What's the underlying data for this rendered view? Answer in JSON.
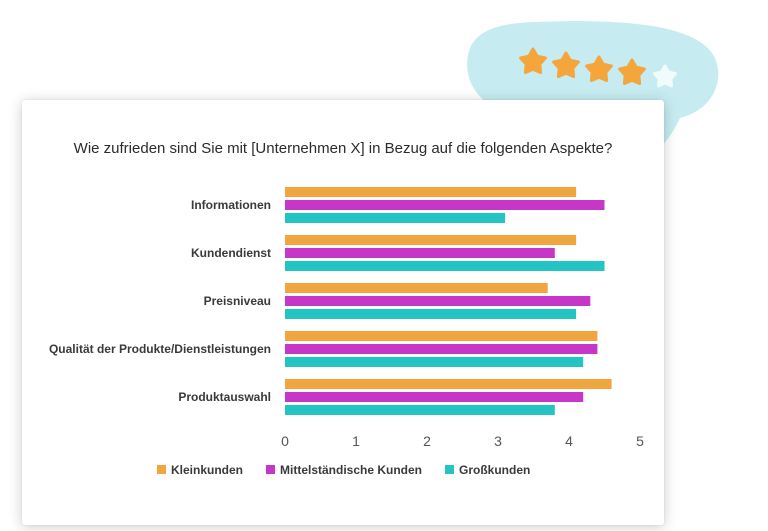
{
  "colors": {
    "kleinkunden": "#F0A53E",
    "mittelstaendische": "#C737C7",
    "grosskunden": "#24C4C4",
    "bubble": "#C6ECF1",
    "star": "#F4A53C",
    "star_empty": "#F2FBFC"
  },
  "rating": {
    "stars_filled": 4,
    "stars_total": 5
  },
  "chart_data": {
    "type": "bar",
    "orientation": "horizontal",
    "title": "Wie zufrieden sind Sie mit [Unternehmen X] in Bezug auf die folgenden Aspekte?",
    "categories": [
      "Informationen",
      "Kundendienst",
      "Preisniveau",
      "Qualität der Produkte/Dienstleistungen",
      "Produktauswahl"
    ],
    "series": [
      {
        "name": "Kleinkunden",
        "values": [
          4.1,
          4.1,
          3.7,
          4.4,
          4.6
        ]
      },
      {
        "name": "Mittelständische Kunden",
        "values": [
          4.5,
          3.8,
          4.3,
          4.4,
          4.2
        ]
      },
      {
        "name": "Großkunden",
        "values": [
          3.1,
          4.5,
          4.1,
          4.2,
          3.8
        ]
      }
    ],
    "xlim": [
      0,
      5
    ],
    "xticks": [
      "0",
      "1",
      "2",
      "3",
      "4",
      "5"
    ],
    "grid": false,
    "legend": "bottom"
  }
}
